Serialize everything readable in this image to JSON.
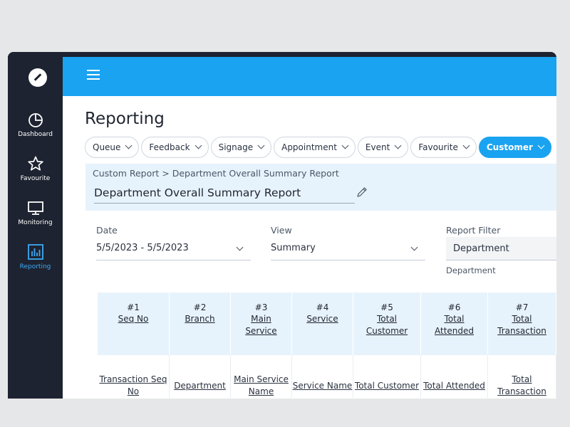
{
  "sidebar": {
    "items": [
      {
        "label": "Dashboard",
        "icon": "pie-chart-icon"
      },
      {
        "label": "Favourite",
        "icon": "star-icon"
      },
      {
        "label": "Monitoring",
        "icon": "monitor-icon"
      },
      {
        "label": "Reporting",
        "icon": "bar-chart-icon",
        "active": true
      }
    ]
  },
  "page": {
    "title": "Reporting"
  },
  "tabs": [
    {
      "label": "Queue"
    },
    {
      "label": "Feedback"
    },
    {
      "label": "Signage"
    },
    {
      "label": "Appointment"
    },
    {
      "label": "Event"
    },
    {
      "label": "Favourite"
    },
    {
      "label": "Customer",
      "active": true
    }
  ],
  "report": {
    "breadcrumb": "Custom Report > Department Overall Summary Report",
    "title": "Department Overall Summary Report"
  },
  "filters": {
    "date": {
      "label": "Date",
      "value": "5/5/2023 - 5/5/2023"
    },
    "view": {
      "label": "View",
      "value": "Summary"
    },
    "report_filter": {
      "label": "Report Filter",
      "value": "Department",
      "hint": "Department"
    }
  },
  "table": {
    "columns": [
      {
        "num": "#1",
        "name": [
          "Seq No"
        ],
        "field": [
          "Transaction Seq",
          "No"
        ]
      },
      {
        "num": "#2",
        "name": [
          "Branch"
        ],
        "field": [
          "Department"
        ]
      },
      {
        "num": "#3",
        "name": [
          "Main",
          "Service"
        ],
        "field": [
          "Main Service",
          "Name"
        ]
      },
      {
        "num": "#4",
        "name": [
          "Service"
        ],
        "field": [
          "Service Name"
        ]
      },
      {
        "num": "#5",
        "name": [
          "Total",
          "Customer"
        ],
        "field": [
          "Total Customer"
        ]
      },
      {
        "num": "#6",
        "name": [
          "Total",
          "Attended"
        ],
        "field": [
          "Total Attended"
        ]
      },
      {
        "num": "#7",
        "name": [
          "Total",
          "Transaction"
        ],
        "field": [
          "Total",
          "Transaction"
        ]
      }
    ]
  },
  "colors": {
    "accent": "#1aa3f0",
    "sidebar": "#1d2330",
    "header_bg": "#e7f3fc"
  }
}
